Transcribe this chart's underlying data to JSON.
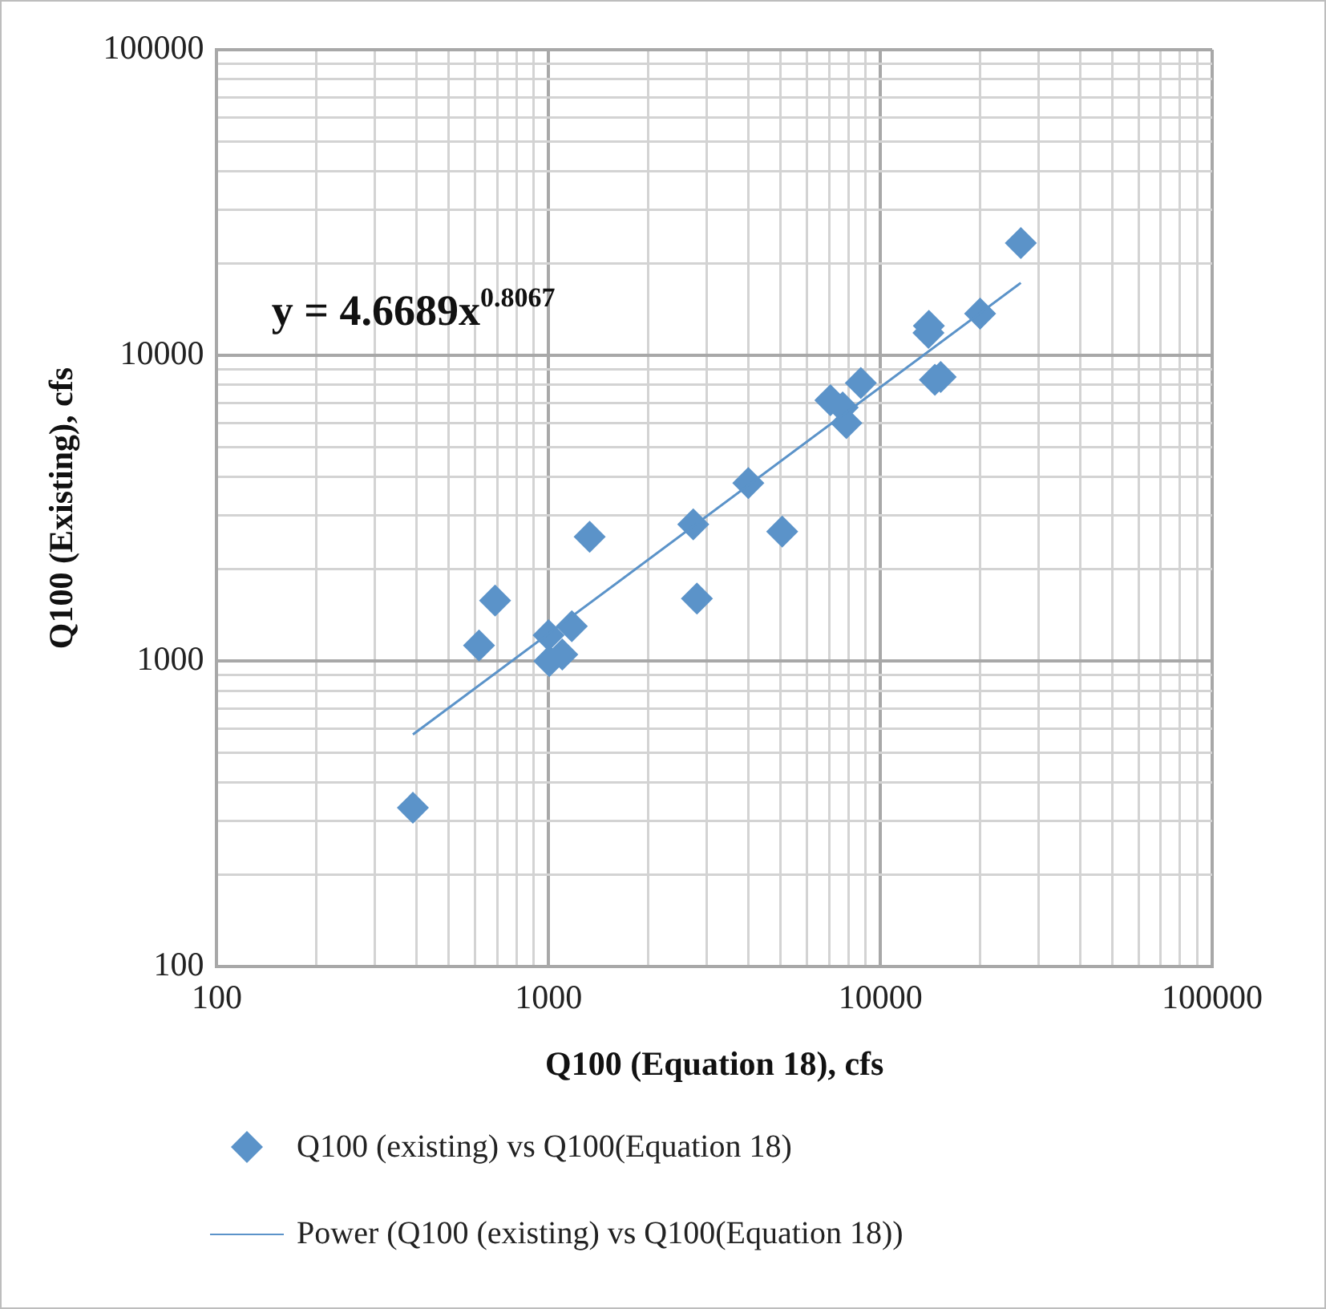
{
  "chart_data": {
    "type": "scatter",
    "xlabel": "Q100 (Equation 18), cfs",
    "ylabel": "Q100 (Existing), cfs",
    "log": "xy",
    "xlim": [
      100,
      100000
    ],
    "ylim": [
      100,
      100000
    ],
    "xticks": [
      100,
      1000,
      10000,
      100000
    ],
    "yticks": [
      100,
      1000,
      10000,
      100000
    ],
    "grid": true,
    "legend": "bottom",
    "marker": "diamond",
    "annotations": [
      "y = 4.6689x$^{0.8067}$"
    ],
    "series": [
      {
        "name": "Q100 (existing) vs Q100(Equation 18)",
        "color": "#5b93c9",
        "x": [
          390,
          617,
          690,
          1000,
          1005,
          1100,
          1175,
          1330,
          2730,
          2800,
          4000,
          5060,
          7070,
          7700,
          7900,
          8730,
          13960,
          14000,
          14600,
          15200,
          19980,
          26500
        ],
        "values": [
          331,
          1124,
          1577,
          1215,
          1000,
          1050,
          1300,
          2550,
          2800,
          1600,
          3820,
          2650,
          7130,
          6750,
          6000,
          8120,
          11850,
          12500,
          8320,
          8500,
          13700,
          23300
        ]
      },
      {
        "name": "Power (Q100 (existing) vs Q100(Equation 18))",
        "type": "line",
        "marker": "none",
        "line_style": "solid",
        "color": "#5b93c9",
        "x": [
          390,
          26500
        ],
        "values": [
          575,
          17270
        ]
      }
    ]
  }
}
